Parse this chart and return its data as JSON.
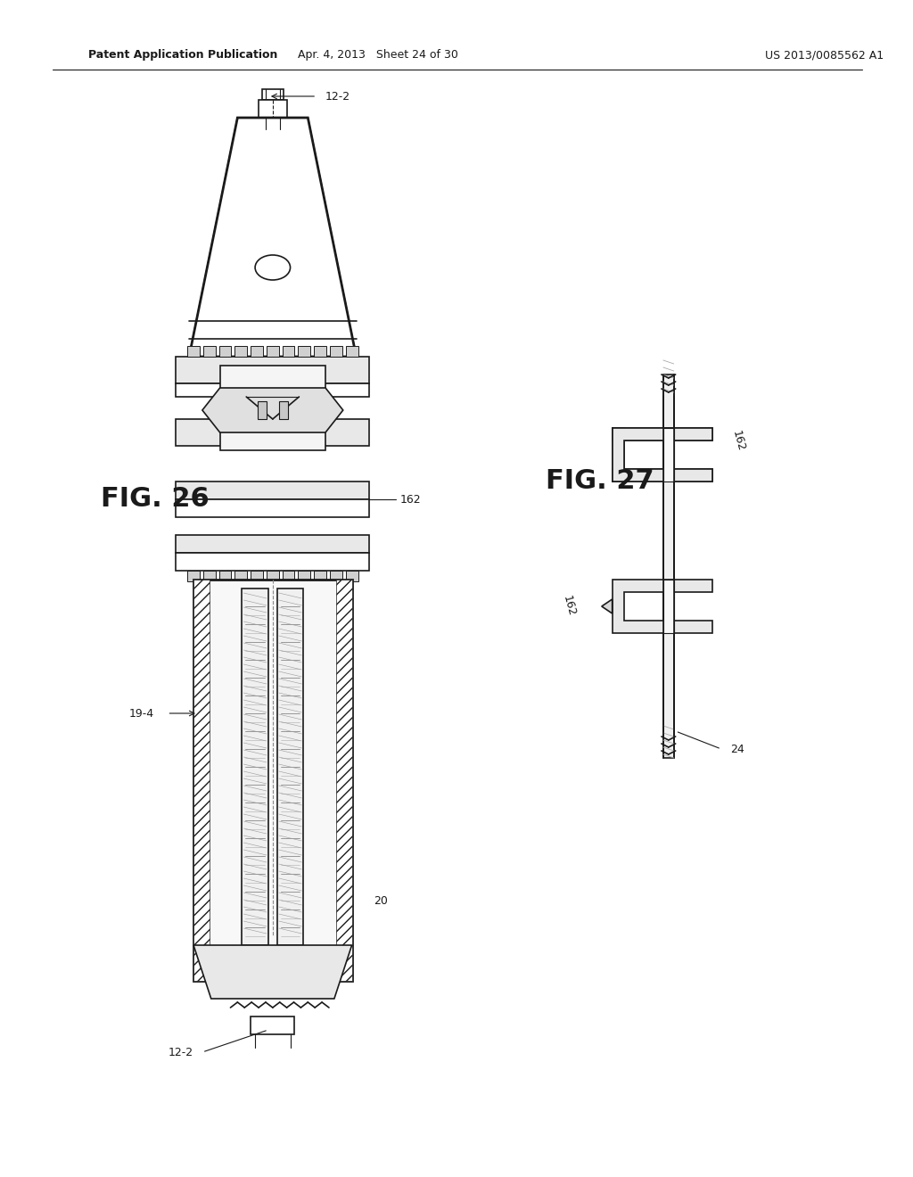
{
  "header_left": "Patent Application Publication",
  "header_mid": "Apr. 4, 2013   Sheet 24 of 30",
  "header_right": "US 2013/0085562 A1",
  "fig26_label": "FIG. 26",
  "fig27_label": "FIG. 27",
  "label_12_2_top": "12-2",
  "label_162_mid": "162",
  "label_19_4": "19-4",
  "label_20": "20",
  "label_12_2_bot": "12-2",
  "label_162_right_top": "162",
  "label_162_right_bot": "162",
  "label_24": "24",
  "bg_color": "#ffffff",
  "line_color": "#1a1a1a",
  "hatch_color": "#555555",
  "fig_width": 10.24,
  "fig_height": 13.2
}
